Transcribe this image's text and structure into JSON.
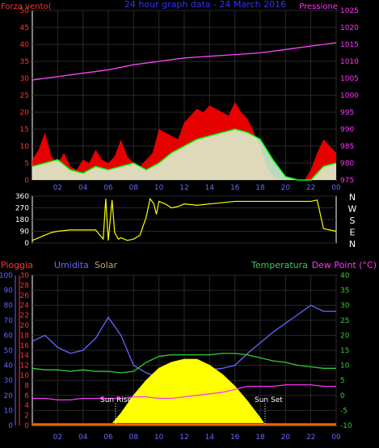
{
  "chart_data": [
    {
      "type": "line",
      "title": "24 hour graph data - 24 March 2016",
      "left_axis_label": "Forza vento(",
      "right_axis_label": "Pressione",
      "x_ticks": [
        "02",
        "04",
        "06",
        "08",
        "10",
        "12",
        "14",
        "16",
        "18",
        "20",
        "22",
        "00"
      ],
      "left_ticks": [
        "0",
        "5",
        "10",
        "15",
        "20",
        "25",
        "30",
        "35",
        "40",
        "45",
        "50"
      ],
      "right_ticks": [
        "975",
        "980",
        "985",
        "990",
        "995",
        "1000",
        "1005",
        "1010",
        "1015",
        "1020",
        "1025"
      ],
      "ylim_left": [
        0,
        50
      ],
      "ylim_right": [
        975,
        1025
      ],
      "series": [
        {
          "role": "gust",
          "color": "#ff0000",
          "x": [
            0,
            0.5,
            1,
            1.5,
            2,
            2.5,
            3,
            3.5,
            4,
            4.5,
            5,
            5.5,
            6,
            6.5,
            7,
            7.5,
            8,
            8.5,
            9,
            9.5,
            10,
            10.5,
            11,
            11.5,
            12,
            12.5,
            13,
            13.5,
            14,
            14.5,
            15,
            15.5,
            16,
            16.5,
            17,
            17.5,
            18,
            18.5,
            19,
            19.5,
            20,
            20.5,
            21,
            21.5,
            22,
            22.5,
            23,
            23.5,
            24
          ],
          "values": [
            6,
            9,
            14,
            7,
            5,
            8,
            4,
            3,
            6,
            5,
            9,
            6,
            5,
            7,
            12,
            7,
            5,
            4,
            6,
            8,
            15,
            14,
            13,
            12,
            17,
            19,
            21,
            20,
            22,
            21,
            20,
            19,
            23,
            20,
            18,
            14,
            10,
            4,
            1,
            0,
            0,
            0,
            0,
            0,
            3,
            8,
            12,
            10,
            8
          ]
        },
        {
          "role": "average",
          "color": "#00ff00",
          "x": [
            0,
            1,
            2,
            3,
            4,
            5,
            6,
            7,
            8,
            9,
            10,
            11,
            12,
            13,
            14,
            15,
            16,
            17,
            18,
            19,
            20,
            21,
            22,
            23,
            24
          ],
          "values": [
            4,
            5,
            6,
            3,
            2,
            4,
            3,
            4,
            5,
            3,
            5,
            8,
            10,
            12,
            13,
            14,
            15,
            14,
            12,
            6,
            1,
            0,
            0,
            4,
            5
          ]
        },
        {
          "role": "pressure",
          "axis": "right",
          "color": "#ff44ff",
          "x": [
            0,
            2,
            4,
            6,
            8,
            10,
            12,
            14,
            16,
            18,
            20,
            22,
            24
          ],
          "values": [
            1004.5,
            1005.5,
            1006.5,
            1007.5,
            1009,
            1010,
            1011,
            1011.5,
            1012,
            1012.5,
            1013.5,
            1014.5,
            1015.5
          ]
        }
      ]
    },
    {
      "type": "line",
      "left_ticks": [
        "0",
        "90",
        "180",
        "270",
        "360"
      ],
      "right_labels": [
        "N",
        "W",
        "S",
        "E",
        "N"
      ],
      "ylim": [
        0,
        360
      ],
      "series": [
        {
          "role": "direction",
          "color": "#ffff00",
          "x": [
            0,
            0.5,
            1,
            1.5,
            2,
            3,
            4,
            5,
            5.6,
            5.8,
            6,
            6.3,
            6.5,
            6.8,
            7,
            7.5,
            8,
            8.5,
            9,
            9.3,
            9.6,
            9.8,
            10,
            10.5,
            11,
            11.5,
            12,
            13,
            14,
            15,
            16,
            17,
            18,
            19,
            20,
            21,
            22,
            22.5,
            23,
            23.5,
            24
          ],
          "values": [
            20,
            40,
            60,
            80,
            90,
            100,
            100,
            100,
            30,
            340,
            20,
            330,
            80,
            30,
            40,
            20,
            30,
            60,
            200,
            340,
            300,
            220,
            320,
            300,
            270,
            280,
            300,
            290,
            300,
            310,
            320,
            320,
            320,
            320,
            320,
            320,
            320,
            330,
            110,
            100,
            90
          ]
        }
      ]
    },
    {
      "type": "line",
      "labels": {
        "rain": "Pioggia",
        "humidity": "Umidita",
        "solar": "Solar",
        "temperature": "Temperatura",
        "dewpoint": "Dew Point (°C)"
      },
      "annotations": {
        "sunrise": "Sun Rise",
        "sunset": "Sun Set"
      },
      "humidity_ticks": [
        "0",
        "10",
        "20",
        "30",
        "40",
        "50",
        "60",
        "70",
        "80",
        "90",
        "100"
      ],
      "rain_ticks": [
        "0",
        "2",
        "4",
        "6",
        "8",
        "10",
        "12",
        "14",
        "16",
        "18",
        "20",
        "22",
        "24",
        "26",
        "28",
        "30"
      ],
      "temp_ticks": [
        "-10",
        "-5",
        "0",
        "5",
        "10",
        "15",
        "20",
        "25",
        "30",
        "35",
        "40"
      ],
      "ylim_humidity": [
        0,
        100
      ],
      "ylim_temp": [
        -10,
        40
      ],
      "series": [
        {
          "role": "humidity",
          "color": "#6666ff",
          "x": [
            0,
            1,
            2,
            3,
            4,
            5,
            6,
            7,
            8,
            9,
            10,
            11,
            12,
            13,
            14,
            15,
            16,
            17,
            18,
            19,
            20,
            21,
            22,
            23,
            24
          ],
          "values": [
            56,
            60,
            52,
            48,
            50,
            58,
            72,
            60,
            40,
            35,
            32,
            35,
            38,
            38,
            37,
            38,
            40,
            48,
            55,
            62,
            68,
            74,
            80,
            76,
            76
          ]
        },
        {
          "role": "solar",
          "color": "#ffff00",
          "x": [
            0,
            6.2,
            7,
            8,
            9,
            10,
            11,
            12,
            12.5,
            13,
            14,
            15,
            16,
            17,
            18,
            18.4,
            24
          ],
          "values": [
            0,
            0,
            8,
            20,
            30,
            38,
            42,
            44,
            44,
            44,
            40,
            34,
            26,
            16,
            5,
            0,
            0
          ]
        },
        {
          "role": "temperature",
          "axis": "temp",
          "color": "#33cc33",
          "x": [
            0,
            1,
            2,
            3,
            4,
            5,
            6,
            7,
            8,
            9,
            10,
            11,
            12,
            13,
            14,
            15,
            16,
            17,
            18,
            19,
            20,
            21,
            22,
            23,
            24
          ],
          "values": [
            9,
            8.5,
            8.5,
            8,
            8.5,
            8,
            8,
            7.5,
            8,
            11,
            13,
            13.5,
            13.5,
            13.5,
            13.5,
            14,
            14,
            13.5,
            12.5,
            11.5,
            11,
            10,
            9.5,
            9,
            9
          ]
        },
        {
          "role": "dewpoint",
          "axis": "temp",
          "color": "#ff33ff",
          "x": [
            0,
            1,
            2,
            3,
            4,
            5,
            6,
            7,
            8,
            9,
            10,
            11,
            12,
            13,
            14,
            15,
            16,
            17,
            18,
            19,
            20,
            21,
            22,
            23,
            24
          ],
          "values": [
            -1,
            -1,
            -1.5,
            -1.5,
            -1,
            -1,
            -1,
            -1,
            -0.5,
            -0.5,
            -1,
            -1,
            -0.5,
            0,
            0.5,
            1,
            2,
            3,
            3,
            3,
            3.5,
            3.5,
            3.5,
            3,
            3
          ]
        },
        {
          "role": "rain",
          "color": "#ff0000",
          "x": [
            0,
            24
          ],
          "values": [
            0,
            0
          ]
        }
      ]
    }
  ]
}
